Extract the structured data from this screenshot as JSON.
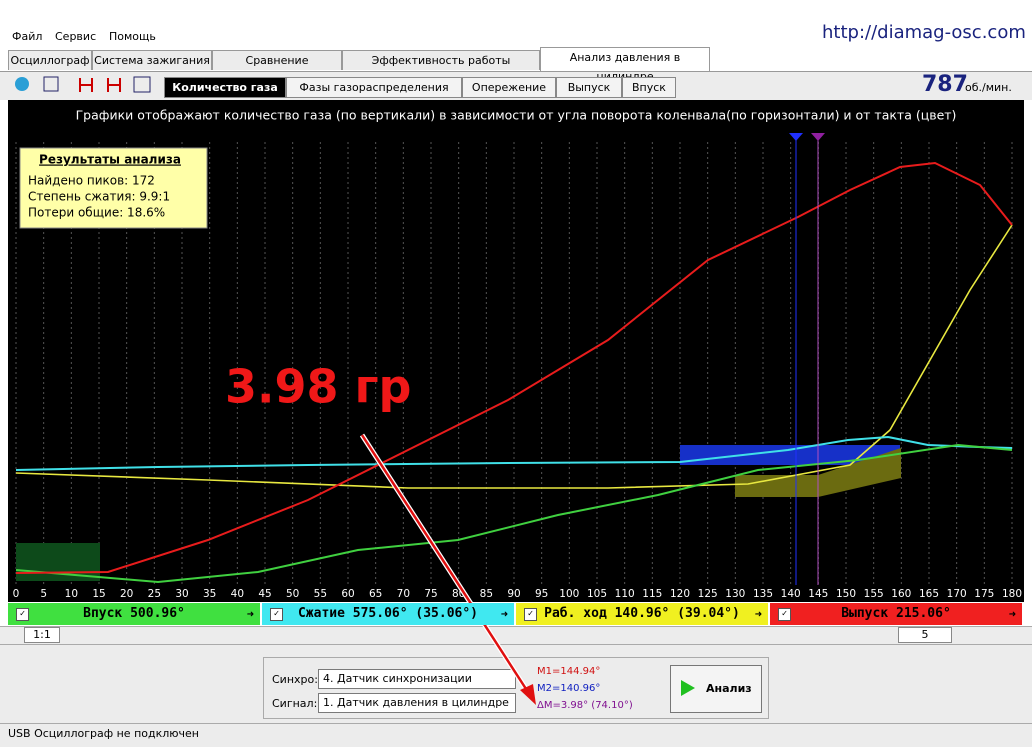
{
  "menu": [
    "Файл",
    "Сервис",
    "Помощь"
  ],
  "url": "http://diamag-osc.com",
  "tabs": [
    "Осциллограф",
    "Система зажигания",
    "Сравнение цилиндров",
    "Эффективность работы цилиндров",
    "Анализ давления в цилиндре"
  ],
  "subtabs": [
    "Количество газа",
    "Фазы газораспределения",
    "Опережение",
    "Выпуск",
    "Впуск"
  ],
  "rpm": {
    "value": 787,
    "unit": "об./мин."
  },
  "chart": {
    "title": "Графики отображают количество газа (по вертикали) в зависимости от угла поворота коленвала(по горизонтали) и от такта (цвет)",
    "xlim": [
      0,
      180
    ],
    "xticks": [
      0,
      5,
      10,
      15,
      20,
      25,
      30,
      35,
      40,
      45,
      50,
      55,
      60,
      65,
      70,
      75,
      80,
      85,
      90,
      95,
      100,
      105,
      110,
      115,
      120,
      125,
      130,
      135,
      140,
      145,
      150,
      155,
      160,
      165,
      170,
      175,
      180
    ],
    "results": {
      "title": "Результаты анализа",
      "lines": [
        "Найдено пиков: 172",
        "Степень сжатия: 9.9:1",
        "Потери общие: 18.6%"
      ]
    },
    "annotation": "3.98 гр"
  },
  "phases": [
    "Впуск 500.96°",
    "Сжатие 575.06° (35.06°)",
    "Раб. ход 140.96° (39.04°)",
    "Выпуск 215.06°"
  ],
  "scroll": {
    "zoom": "1:1",
    "page": "5"
  },
  "panel": {
    "sync_label": "Синхро:",
    "sync_value": "4. Датчик синхронизации",
    "signal_label": "Сигнал:",
    "signal_value": "1. Датчик давления в цилиндре",
    "markers": [
      "M1=144.94°",
      "M2=140.96°",
      "ΔM=3.98° (74.10°)"
    ],
    "button": "Анализ"
  },
  "status": "USB Осциллограф не подключен"
}
